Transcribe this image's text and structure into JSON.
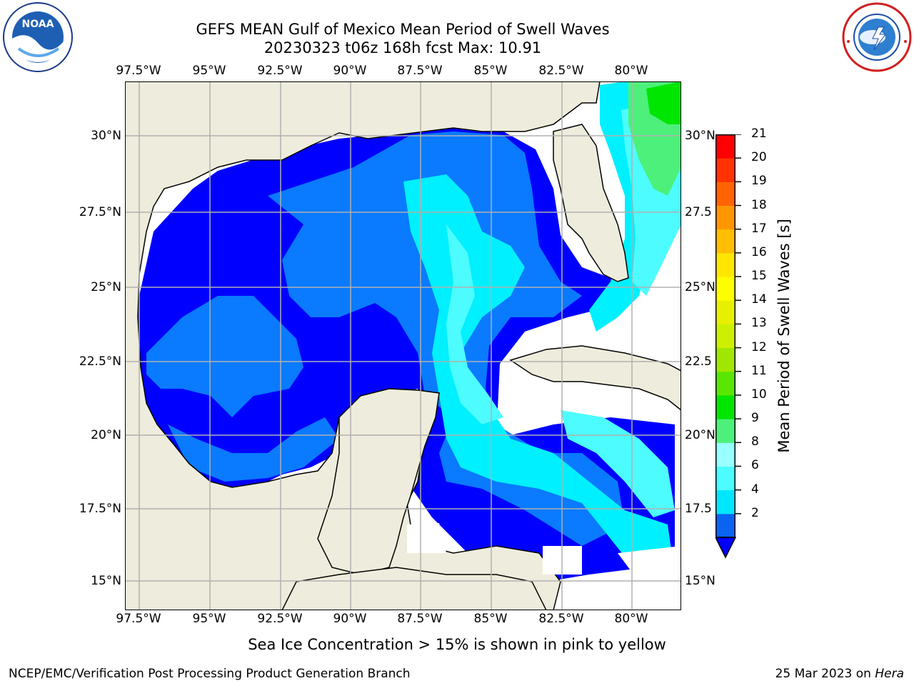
{
  "header": {
    "title_line1": "GEFS MEAN Gulf of Mexico Mean Period of Swell Waves",
    "title_line2": "20230323 t06z 168h fcst   Max: 10.91"
  },
  "map": {
    "lon_labels": [
      "97.5°W",
      "95°W",
      "92.5°W",
      "90°W",
      "87.5°W",
      "85°W",
      "82.5°W",
      "80°W"
    ],
    "lat_labels": [
      "30°N",
      "27.5°N",
      "25°N",
      "22.5°N",
      "20°N",
      "17.5°N",
      "15°N"
    ],
    "right_lat_labels": [
      "30°N",
      "27.5",
      "25°N",
      "22.5",
      "20°N",
      "17.5",
      "15°N"
    ],
    "land_color": "#eeecdc",
    "ocean_no_data_color": "#ffffff",
    "grid_color": "#b0b0b0"
  },
  "colorbar": {
    "title": "Mean Period of Swell Waves [s]",
    "tick_labels": [
      "21",
      "20",
      "19",
      "18",
      "17",
      "16",
      "15",
      "14",
      "13",
      "12",
      "11",
      "10",
      "9",
      "8",
      "6",
      "4",
      "2"
    ],
    "colors_bottom_to_top": [
      "#0a64f0",
      "#00e6ff",
      "#4dfcff",
      "#99ffff",
      "#4df07a",
      "#00e600",
      "#5ae600",
      "#a0e600",
      "#cdf000",
      "#e6f000",
      "#ffff00",
      "#ffe600",
      "#ffbe00",
      "#ff9600",
      "#ff6400",
      "#ff3200",
      "#ff0000"
    ],
    "underflow_color": "#0000ff"
  },
  "legend_colors": {
    "period_lt2": "#0000ff",
    "period_2_4": "#0a7aff",
    "period_4_6": "#00f0ff",
    "period_6_8": "#4dfcff",
    "period_8_9": "#99ffff",
    "period_9_10": "#4df07a",
    "period_10_11": "#00e600"
  },
  "note": "Sea Ice Concentration > 15% is shown in pink to yellow",
  "footer": {
    "left": "NCEP/EMC/Verification Post Processing Product Generation Branch",
    "right_date": "25 Mar 2023 on ",
    "right_host": "Hera"
  },
  "logos": {
    "left_text": "NOAA",
    "right_text": "NATIONAL WEATHER SERVICE"
  }
}
